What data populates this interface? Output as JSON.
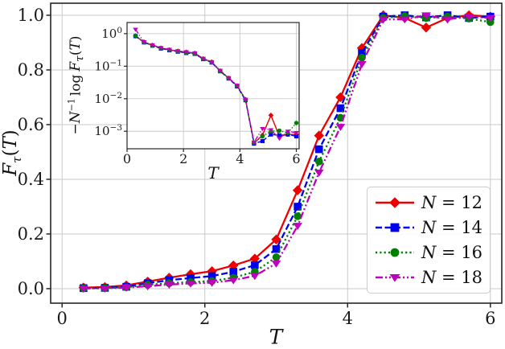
{
  "figure": {
    "background": "#ffffff"
  },
  "axes": {
    "main": {
      "xlabel": "T",
      "ylabel": {
        "base": "F",
        "sub": "τ",
        "open": "(",
        "tvar": "T",
        "close": ")"
      }
    },
    "inset": {
      "xlabel": "T",
      "ylabel": {
        "minus": "−",
        "nvar": "N",
        "sup": "−1",
        "log": "log",
        "base": "F",
        "sub": "τ",
        "open": "(",
        "tvar": "T",
        "close": ")"
      }
    }
  },
  "chart_data": [
    {
      "id": "main",
      "type": "line",
      "title": "",
      "xlabel": "T",
      "ylabel": "F_τ(T)",
      "xlim": [
        -0.16,
        6.16
      ],
      "ylim": [
        -0.053,
        1.044
      ],
      "xticks": [
        0,
        2,
        4,
        6
      ],
      "yticks": [
        0.0,
        0.2,
        0.4,
        0.6,
        0.8,
        1.0
      ],
      "grid": true,
      "legend_position": "lower right",
      "x": [
        0.3,
        0.6,
        0.9,
        1.2,
        1.5,
        1.8,
        2.1,
        2.4,
        2.7,
        3.0,
        3.3,
        3.6,
        3.9,
        4.2,
        4.5,
        4.8,
        5.1,
        5.4,
        5.7,
        6.0
      ],
      "series": [
        {
          "name": "N = 12",
          "color": "#ee0000",
          "linestyle": "solid",
          "marker": "diamond",
          "values": [
            0.004,
            0.006,
            0.012,
            0.026,
            0.04,
            0.053,
            0.064,
            0.085,
            0.11,
            0.18,
            0.36,
            0.56,
            0.7,
            0.88,
            1.0,
            0.99,
            0.955,
            0.99,
            1.0,
            0.995
          ]
        },
        {
          "name": "N = 14",
          "color": "#0000ee",
          "linestyle": "dashed",
          "marker": "square",
          "values": [
            0.002,
            0.003,
            0.007,
            0.02,
            0.031,
            0.039,
            0.046,
            0.062,
            0.086,
            0.145,
            0.3,
            0.51,
            0.66,
            0.862,
            0.995,
            1.0,
            0.992,
            1.0,
            0.99,
            0.995
          ]
        },
        {
          "name": "N = 16",
          "color": "#008000",
          "linestyle": "dotted",
          "marker": "circle",
          "values": [
            0.001,
            0.002,
            0.005,
            0.014,
            0.02,
            0.024,
            0.028,
            0.04,
            0.062,
            0.115,
            0.265,
            0.465,
            0.625,
            0.845,
            0.99,
            0.997,
            0.99,
            0.995,
            0.988,
            0.975
          ]
        },
        {
          "name": "N = 18",
          "color": "#bf00bf",
          "linestyle": "dashdotdot",
          "marker": "triangle-down",
          "values": [
            0.001,
            0.001,
            0.004,
            0.009,
            0.015,
            0.019,
            0.022,
            0.031,
            0.047,
            0.092,
            0.23,
            0.425,
            0.592,
            0.822,
            0.985,
            0.985,
            1.0,
            0.985,
            0.995,
            0.99
          ]
        }
      ]
    },
    {
      "id": "inset",
      "type": "line",
      "title": "",
      "xlabel": "T",
      "ylabel": "−N⁻¹ log F_τ(T)",
      "yscale": "log",
      "xlim": [
        0,
        6.1
      ],
      "ylim": [
        0.00029,
        2.2
      ],
      "xticks": [
        0,
        2,
        4,
        6
      ],
      "ytick_exponents": [
        0,
        -1,
        -2,
        -3
      ],
      "yticks": [
        1,
        0.1,
        0.01,
        0.001
      ],
      "grid": true,
      "x": [
        0.3,
        0.6,
        0.9,
        1.2,
        1.5,
        1.8,
        2.1,
        2.4,
        2.7,
        3.0,
        3.3,
        3.6,
        3.9,
        4.2,
        4.5,
        4.8,
        5.1,
        5.4,
        5.7,
        6.0
      ],
      "series": [
        {
          "name": "N = 12",
          "color": "#ee0000",
          "linestyle": "solid",
          "marker": "diamond",
          "values": [
            0.85,
            0.55,
            0.44,
            0.36,
            0.32,
            0.29,
            0.27,
            0.25,
            0.17,
            0.135,
            0.072,
            0.043,
            0.025,
            0.0095,
            0.00043,
            0.00076,
            0.0031,
            0.0007,
            0.0008,
            0.0008
          ]
        },
        {
          "name": "N = 14",
          "color": "#0000ee",
          "linestyle": "dashed",
          "marker": "square",
          "values": [
            0.84,
            0.54,
            0.43,
            0.35,
            0.31,
            0.28,
            0.255,
            0.24,
            0.165,
            0.13,
            0.07,
            0.042,
            0.024,
            0.009,
            0.00042,
            0.0005,
            0.0008,
            0.00075,
            0.0008,
            0.0007
          ]
        },
        {
          "name": "N = 16",
          "color": "#008000",
          "linestyle": "dotted",
          "marker": "circle",
          "values": [
            0.86,
            0.55,
            0.44,
            0.36,
            0.315,
            0.285,
            0.26,
            0.245,
            0.168,
            0.132,
            0.071,
            0.043,
            0.025,
            0.0092,
            0.00045,
            0.0007,
            0.001,
            0.00105,
            0.0009,
            0.0018
          ]
        },
        {
          "name": "N = 18",
          "color": "#bf00bf",
          "linestyle": "dashdotdot",
          "marker": "triangle-down",
          "values": [
            1.35,
            0.56,
            0.45,
            0.37,
            0.325,
            0.295,
            0.275,
            0.255,
            0.172,
            0.136,
            0.074,
            0.044,
            0.026,
            0.0095,
            0.00046,
            0.0012,
            0.0011,
            0.0006,
            0.001,
            0.0009
          ]
        }
      ]
    }
  ]
}
